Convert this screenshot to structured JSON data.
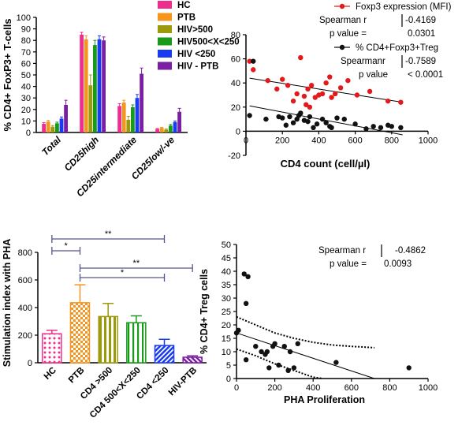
{
  "chart_data": [
    {
      "type": "bar",
      "id": "A",
      "ylabel": "% CD4+ FoxP3+ T-cells",
      "ylim": [
        0,
        100
      ],
      "yticks": [
        0,
        10,
        20,
        30,
        40,
        50,
        60,
        70,
        80,
        90,
        100
      ],
      "categories": [
        "Total",
        "CD25high",
        "CD25intermediate",
        "CD25low/-ve"
      ],
      "series": [
        {
          "name": "HC",
          "color": "#ee2e8c",
          "values": [
            7.5,
            85,
            23,
            3
          ],
          "errors": [
            1,
            2,
            2,
            0.5
          ]
        },
        {
          "name": "PTB",
          "color": "#f7941d",
          "values": [
            9.5,
            81,
            26,
            4
          ],
          "errors": [
            1,
            3,
            2,
            0.5
          ]
        },
        {
          "name": "HIV>500",
          "color": "#9a9a0a",
          "values": [
            5,
            41,
            11,
            2.5
          ],
          "errors": [
            1,
            9,
            3,
            0.5
          ]
        },
        {
          "name": "HIV500<X<250",
          "color": "#1a9a1a",
          "values": [
            8,
            76,
            22,
            6
          ],
          "errors": [
            1,
            4,
            2,
            1
          ]
        },
        {
          "name": "HIV <250",
          "color": "#1a3cf0",
          "values": [
            12,
            81,
            30,
            9
          ],
          "errors": [
            1.5,
            3,
            3,
            1
          ]
        },
        {
          "name": "HIV - PTB",
          "color": "#7a1fa2",
          "values": [
            24,
            80,
            51,
            18
          ],
          "errors": [
            4,
            3,
            5,
            3
          ]
        }
      ]
    },
    {
      "type": "scatter",
      "id": "B",
      "xlabel": "CD4 count (cell/µl)",
      "xlim": [
        0,
        1000
      ],
      "ylim": [
        -20,
        80
      ],
      "xticks": [
        0,
        200,
        400,
        600,
        800,
        1000
      ],
      "yticks": [
        -20,
        0,
        20,
        40,
        60,
        80
      ],
      "series": [
        {
          "name": "Foxp3 expression (MFI)",
          "color": "#e31a1c",
          "stat_label": "Spearman r",
          "stat_r": "-0.4169",
          "p_label": "p value =",
          "p_value": "0.0301",
          "fit": [
            [
              20,
              44
            ],
            [
              860,
              24
            ]
          ],
          "x": [
            20,
            40,
            120,
            170,
            200,
            230,
            260,
            280,
            300,
            320,
            330,
            340,
            350,
            360,
            380,
            400,
            420,
            440,
            460,
            470,
            490,
            520,
            560,
            610,
            680,
            780,
            850
          ],
          "y": [
            58,
            51,
            42,
            35,
            43,
            38,
            25,
            31,
            61,
            29,
            22,
            35,
            20,
            38,
            28,
            30,
            31,
            40,
            45,
            28,
            31,
            36,
            42,
            30,
            33,
            25,
            24
          ]
        },
        {
          "name": "% CD4+Foxp3+Treg",
          "color": "#111111",
          "stat_label": "Spearmanr",
          "stat_r": "-0.7589",
          "p_label": "p value",
          "p_value": "< 0.0001",
          "fit": [
            [
              20,
              21
            ],
            [
              860,
              -3
            ]
          ],
          "x": [
            20,
            40,
            110,
            180,
            200,
            220,
            240,
            260,
            280,
            290,
            300,
            320,
            340,
            350,
            370,
            390,
            420,
            440,
            460,
            470,
            500,
            540,
            600,
            660,
            700,
            740,
            780,
            800,
            850
          ],
          "y": [
            13,
            58,
            10,
            12,
            11,
            5,
            12,
            7,
            10,
            13,
            15,
            9,
            8,
            12,
            3,
            6,
            10,
            7,
            4,
            3,
            11,
            10,
            6,
            2,
            4,
            3,
            5,
            4,
            3
          ]
        }
      ]
    },
    {
      "type": "bar",
      "id": "C",
      "ylabel": "Stimulation index with PHA",
      "ylim": [
        0,
        800
      ],
      "yticks": [
        0,
        200,
        400,
        600,
        800
      ],
      "categories": [
        "HC",
        "PTB",
        "CD4 >500",
        "CD4 500<X<250",
        "CD4 <250",
        "HIV-PTB"
      ],
      "colors": [
        "#ee2e8c",
        "#f7941d",
        "#9a9a0a",
        "#1a9a1a",
        "#1a3cf0",
        "#7a1fa2"
      ],
      "values": [
        210,
        435,
        335,
        290,
        125,
        40
      ],
      "errors": [
        25,
        130,
        95,
        50,
        45,
        10
      ],
      "significance": [
        {
          "from": "HC",
          "to": "PTB",
          "label": "*"
        },
        {
          "from": "HC",
          "to": "CD4 <250",
          "label": "**"
        },
        {
          "from": "PTB",
          "to": "HIV-PTB",
          "label": "**"
        },
        {
          "from": "PTB",
          "to": "CD4 <250",
          "label": "*"
        }
      ]
    },
    {
      "type": "scatter",
      "id": "D",
      "xlabel": "PHA Proliferation",
      "ylabel": "% CD4+ Treg cells",
      "xlim": [
        0,
        1000
      ],
      "ylim": [
        0,
        50
      ],
      "xticks": [
        0,
        200,
        400,
        600,
        800,
        1000
      ],
      "yticks": [
        0,
        5,
        10,
        15,
        20,
        25,
        30,
        35,
        40,
        45,
        50
      ],
      "stat_label": "Spearman r",
      "stat_r": "-0.4862",
      "p_label": "p value =",
      "p_value": "0.0093",
      "fit": [
        [
          0,
          17
        ],
        [
          720,
          0
        ]
      ],
      "ci_upper": [
        [
          0,
          23
        ],
        [
          100,
          20
        ],
        [
          200,
          17
        ],
        [
          300,
          15
        ],
        [
          400,
          13.5
        ],
        [
          500,
          12.5
        ],
        [
          600,
          12
        ],
        [
          720,
          11.5
        ]
      ],
      "ci_lower": [
        [
          0,
          11
        ],
        [
          100,
          8.5
        ],
        [
          200,
          5.5
        ],
        [
          300,
          3
        ],
        [
          400,
          0.5
        ],
        [
          450,
          0
        ]
      ],
      "x": [
        0,
        10,
        40,
        50,
        60,
        50,
        100,
        130,
        150,
        160,
        170,
        190,
        200,
        220,
        250,
        270,
        280,
        300,
        320,
        520,
        900
      ],
      "y": [
        17,
        18,
        39,
        28,
        38,
        7,
        12,
        10,
        9,
        10,
        4,
        12,
        13,
        5,
        12,
        3,
        10,
        4,
        13,
        6,
        4
      ]
    }
  ]
}
